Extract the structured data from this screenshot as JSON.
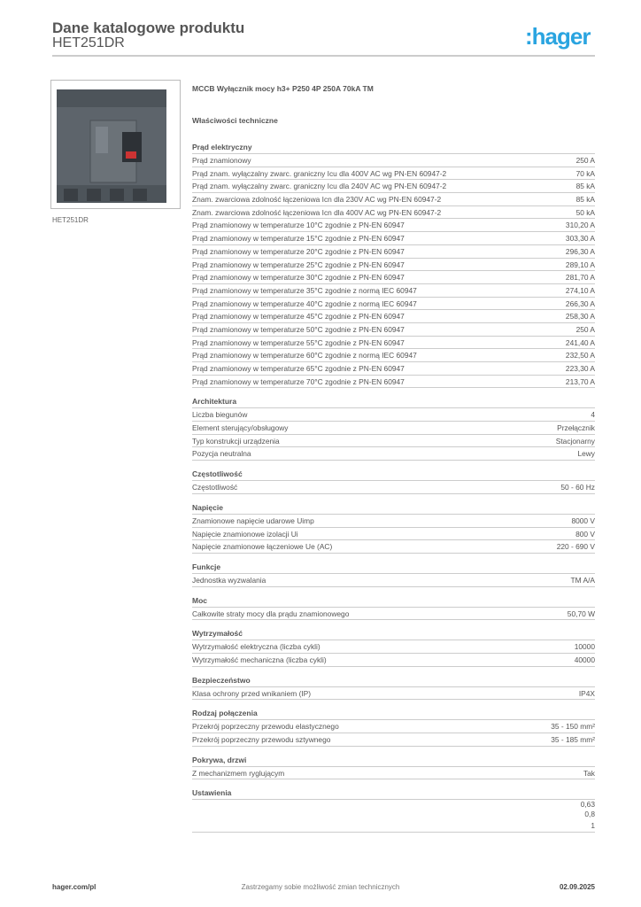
{
  "header": {
    "title": "Dane katalogowe produktu",
    "code": "HET251DR",
    "logo": ":hager"
  },
  "image": {
    "caption": "HET251DR"
  },
  "product": {
    "name": "MCCB Wyłącznik mocy h3+ P250 4P 250A 70kA TM",
    "props_title": "Właściwości techniczne"
  },
  "sections": [
    {
      "title": "Prąd elektryczny",
      "rows": [
        [
          "Prąd znamionowy",
          "250 A"
        ],
        [
          "Prąd znam. wyłączalny zwarc. graniczny Icu dla 400V AC wg PN-EN 60947-2",
          "70 kA"
        ],
        [
          "Prąd znam. wyłączalny zwarc. graniczny Icu dla 240V AC wg PN-EN 60947-2",
          "85 kA"
        ],
        [
          "Znam. zwarciowa zdolność łączeniowa Icn dla 230V AC wg PN-EN 60947-2",
          "85 kA"
        ],
        [
          "Znam. zwarciowa zdolność łączeniowa Icn dla 400V AC wg PN-EN 60947-2",
          "50 kA"
        ],
        [
          "Prąd znamionowy w temperaturze 10°C zgodnie z PN-EN 60947",
          "310,20 A"
        ],
        [
          "Prąd znamionowy w temperaturze 15°C zgodnie z PN-EN 60947",
          "303,30 A"
        ],
        [
          "Prąd znamionowy w temperaturze 20°C zgodnie z PN-EN 60947",
          "296,30 A"
        ],
        [
          "Prąd znamionowy w temperaturze 25°C zgodnie z PN-EN 60947",
          "289,10 A"
        ],
        [
          "Prąd znamionowy w temperaturze 30°C zgodnie z PN-EN 60947",
          "281,70 A"
        ],
        [
          "Prąd znamionowy w temperaturze 35°C zgodnie z normą IEC 60947",
          "274,10 A"
        ],
        [
          "Prąd znamionowy w temperaturze 40°C zgodnie z normą IEC 60947",
          "266,30 A"
        ],
        [
          "Prąd znamionowy w temperaturze 45°C zgodnie z PN-EN 60947",
          "258,30 A"
        ],
        [
          "Prąd znamionowy w temperaturze 50°C zgodnie z PN-EN 60947",
          "250 A"
        ],
        [
          "Prąd znamionowy w temperaturze 55°C zgodnie z PN-EN 60947",
          "241,40 A"
        ],
        [
          "Prąd znamionowy w temperaturze 60°C zgodnie z normą IEC 60947",
          "232,50 A"
        ],
        [
          "Prąd znamionowy w temperaturze 65°C zgodnie z PN-EN 60947",
          "223,30 A"
        ],
        [
          "Prąd znamionowy w temperaturze 70°C zgodnie z PN-EN 60947",
          "213,70 A"
        ]
      ]
    },
    {
      "title": "Architektura",
      "rows": [
        [
          "Liczba biegunów",
          "4"
        ],
        [
          "Element sterujący/obsługowy",
          "Przełącznik"
        ],
        [
          "Typ konstrukcji urządzenia",
          "Stacjonarny"
        ],
        [
          "Pozycja neutralna",
          "Lewy"
        ]
      ]
    },
    {
      "title": "Częstotliwość",
      "rows": [
        [
          "Częstotliwość",
          "50 - 60 Hz"
        ]
      ]
    },
    {
      "title": "Napięcie",
      "rows": [
        [
          "Znamionowe napięcie udarowe Uimp",
          "8000 V"
        ],
        [
          "Napięcie znamionowe izolacji Ui",
          "800 V"
        ],
        [
          "Napięcie znamionowe łączeniowe Ue (AC)",
          "220 - 690 V"
        ]
      ]
    },
    {
      "title": "Funkcje",
      "rows": [
        [
          "Jednostka wyzwalania",
          "TM A/A"
        ]
      ]
    },
    {
      "title": "Moc",
      "rows": [
        [
          "Całkowite straty mocy dla prądu znamionowego",
          "50,70 W"
        ]
      ]
    },
    {
      "title": "Wytrzymałość",
      "rows": [
        [
          "Wytrzymałość elektryczna (liczba cykli)",
          "10000"
        ],
        [
          "Wytrzymałość mechaniczna (liczba cykli)",
          "40000"
        ]
      ]
    },
    {
      "title": "Bezpieczeństwo",
      "rows": [
        [
          "Klasa ochrony przed wnikaniem (IP)",
          "IP4X"
        ]
      ]
    },
    {
      "title": "Rodzaj połączenia",
      "rows": [
        [
          "Przekrój poprzeczny przewodu elastycznego",
          "35 - 150 mm²"
        ],
        [
          "Przekrój poprzeczny przewodu sztywnego",
          "35 - 185 mm²"
        ]
      ]
    },
    {
      "title": "Pokrywa, drzwi",
      "rows": [
        [
          "Z mechanizmem ryglującym",
          "Tak"
        ]
      ]
    },
    {
      "title": "Ustawienia",
      "rows": [
        [
          "",
          "0,63"
        ],
        [
          "",
          "0,8"
        ],
        [
          "",
          "1"
        ]
      ]
    }
  ],
  "footer": {
    "left": "hager.com/pl",
    "center": "Zastrzegamy sobie możliwość zmian technicznych",
    "right": "02.09.2025"
  }
}
